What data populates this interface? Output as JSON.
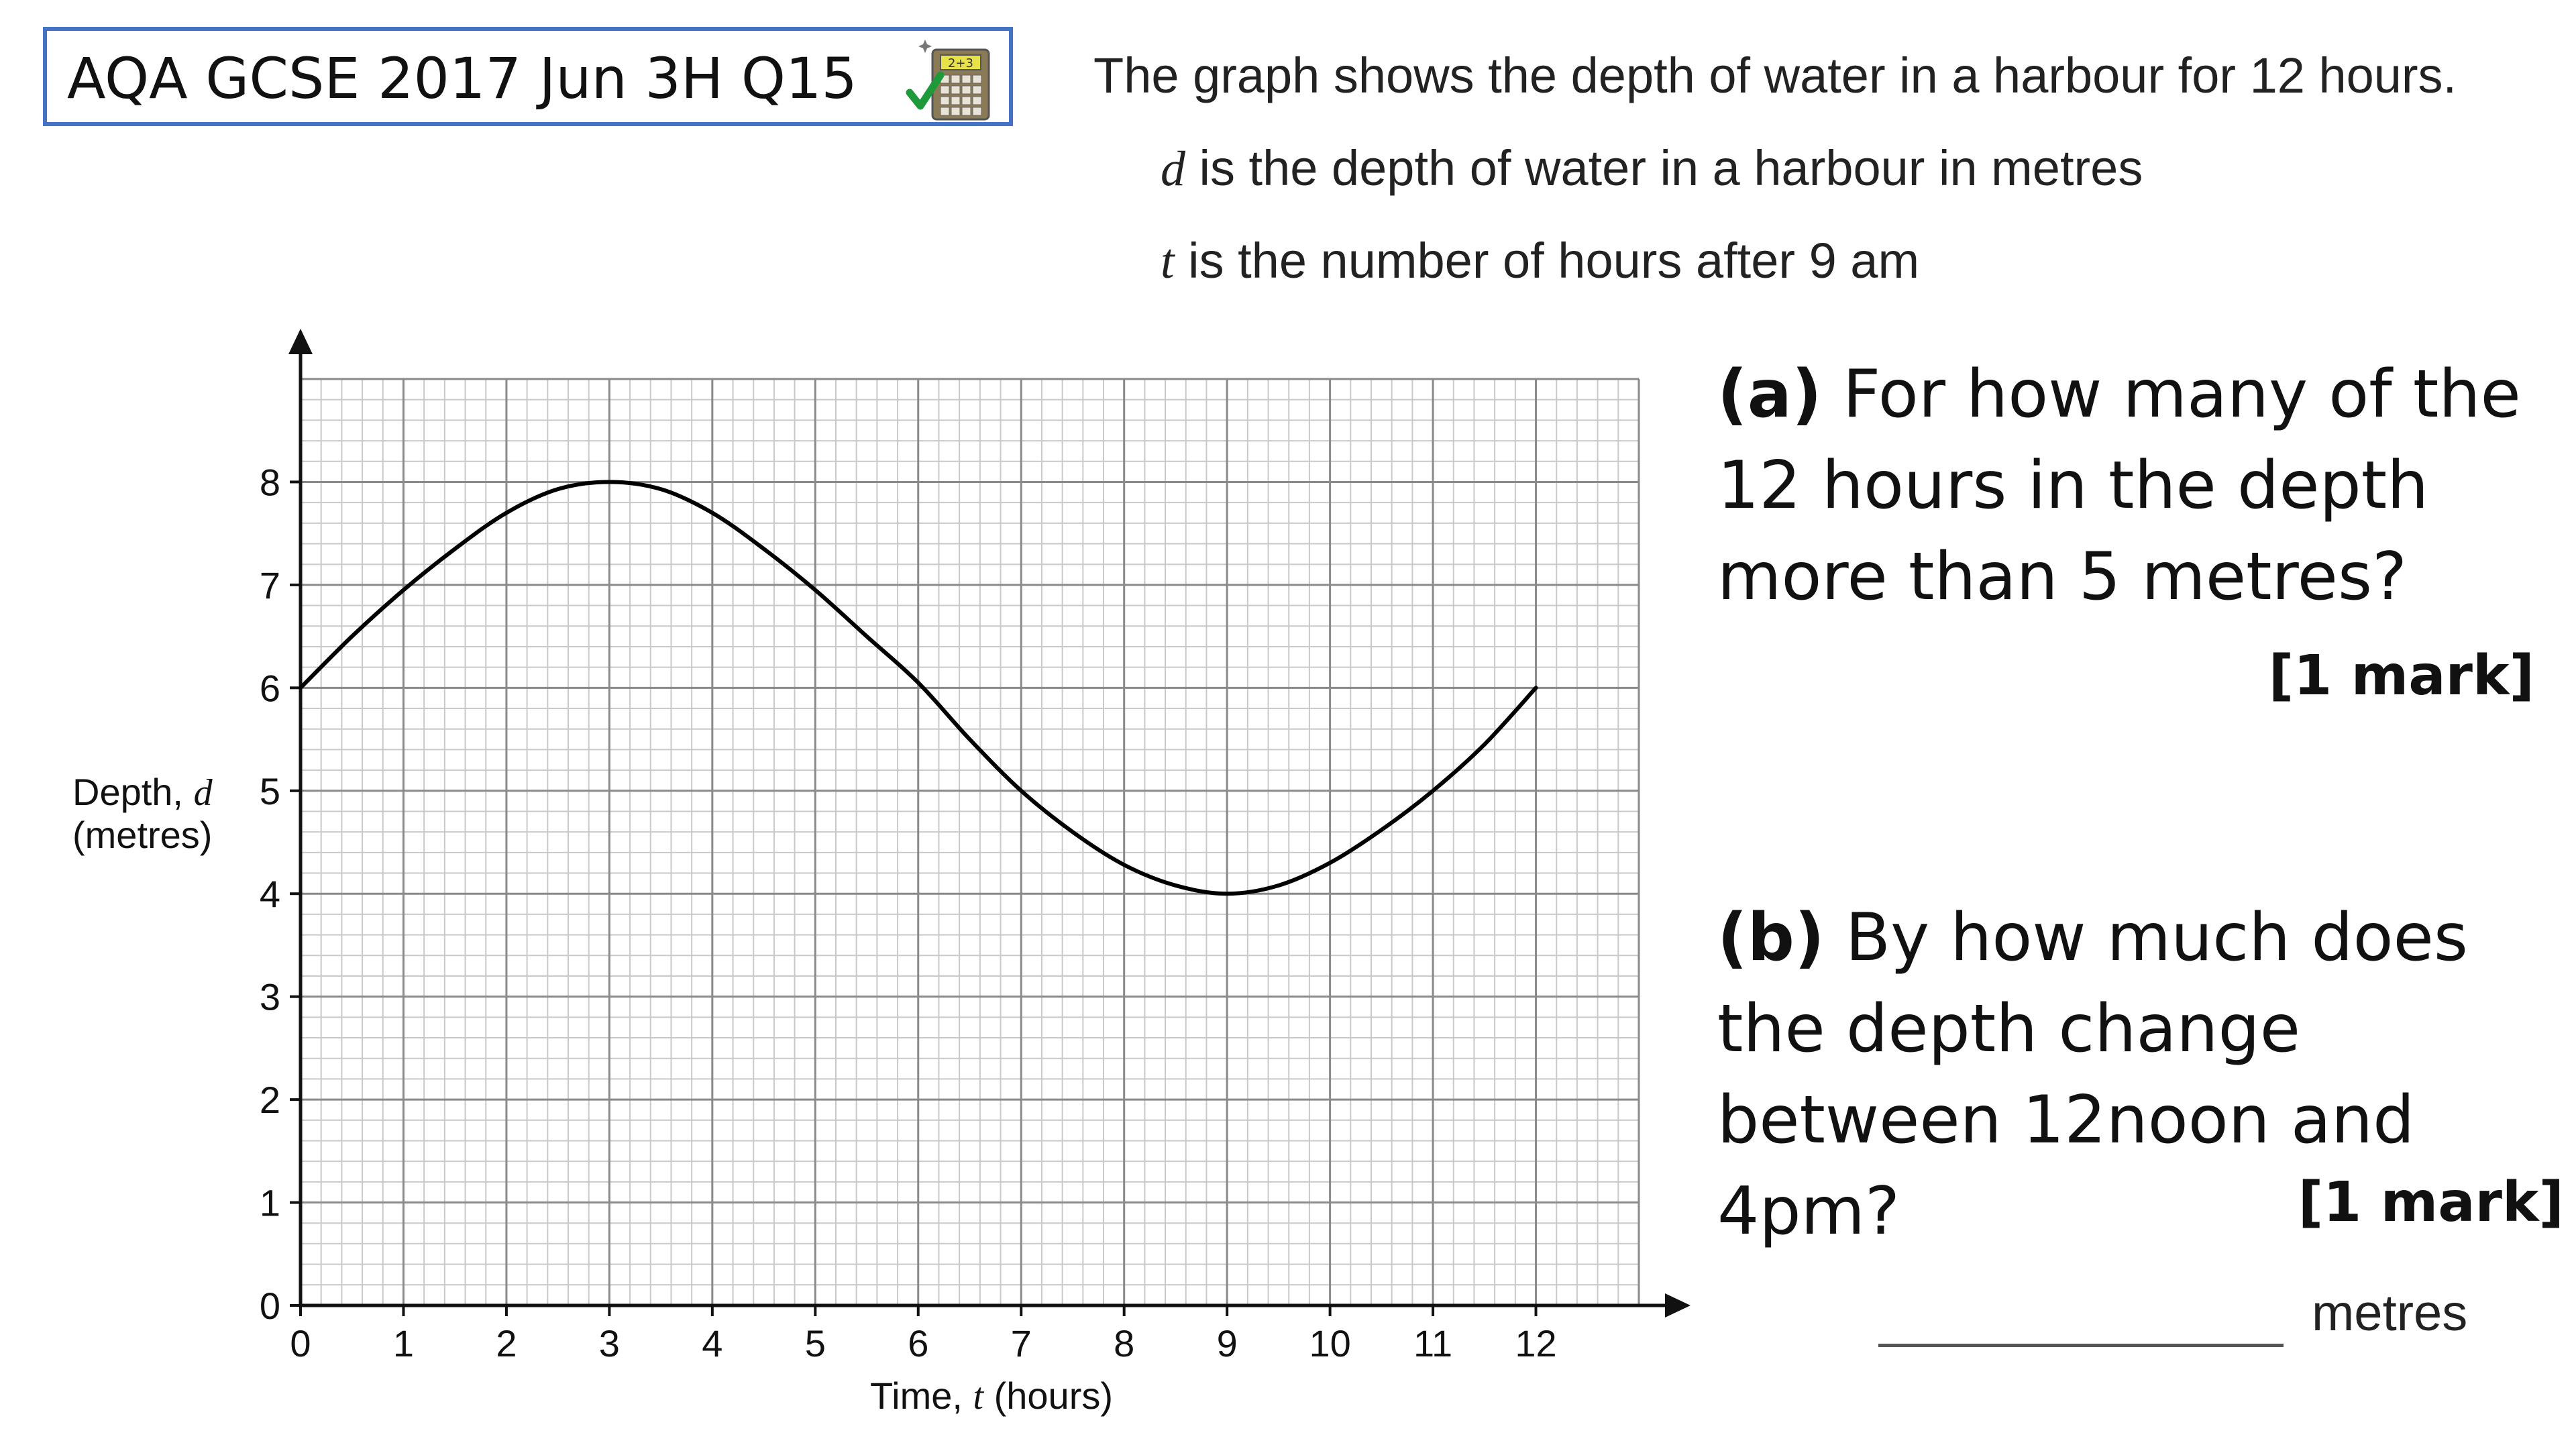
{
  "header": {
    "title": "AQA GCSE 2017 Jun 3H Q15",
    "calculator_icon_label": "2+3",
    "calculator_icon": "calculator-allowed-icon"
  },
  "intro": {
    "line1": "The graph shows the depth of water in a harbour for 12 hours.",
    "line2_var": "d",
    "line2_rest": " is the depth of water in a harbour in metres",
    "line3_var": "t",
    "line3_rest": " is the number of hours after 9 am"
  },
  "questions": {
    "a": {
      "label": "(a)",
      "text": " For how many of the 12 hours in the depth more than 5 metres?",
      "marks": "[1 mark]"
    },
    "b": {
      "label": "(b)",
      "text": " By how much does the depth change between 12noon and 4pm?",
      "marks": "[1 mark]",
      "units": "metres"
    }
  },
  "chart_data": {
    "type": "line",
    "x_axis": {
      "label_prefix": "Time, ",
      "label_var": "t",
      "label_suffix": " (hours)",
      "min": 0,
      "max": 13,
      "ticks": [
        0,
        1,
        2,
        3,
        4,
        5,
        6,
        7,
        8,
        9,
        10,
        11,
        12
      ],
      "tick_labels": [
        "0",
        "1",
        "2",
        "3",
        "4",
        "5",
        "6",
        "7",
        "8",
        "9",
        "10",
        "11",
        "12"
      ]
    },
    "y_axis": {
      "label_line1_prefix": "Depth, ",
      "label_line1_var": "d",
      "label_line2": "(metres)",
      "min": 0,
      "max": 9,
      "ticks": [
        0,
        1,
        2,
        3,
        4,
        5,
        6,
        7,
        8
      ],
      "tick_labels": [
        "0",
        "1",
        "2",
        "3",
        "4",
        "5",
        "6",
        "7",
        "8"
      ]
    },
    "grid": {
      "major": true,
      "minor": true,
      "minor_per_major": 5
    },
    "series": [
      {
        "x": [
          0,
          0.5,
          1,
          1.5,
          2,
          2.5,
          3,
          3.5,
          4,
          4.5,
          5,
          5.5,
          6,
          6.5,
          7,
          7.5,
          8,
          8.5,
          9,
          9.5,
          10,
          10.5,
          11,
          11.5,
          12
        ],
        "y": [
          6,
          6.5,
          6.95,
          7.35,
          7.7,
          7.93,
          8,
          7.93,
          7.7,
          7.35,
          6.95,
          6.5,
          6.05,
          5.5,
          5,
          4.6,
          4.28,
          4.08,
          4,
          4.08,
          4.3,
          4.62,
          5,
          5.45,
          6
        ]
      }
    ]
  }
}
